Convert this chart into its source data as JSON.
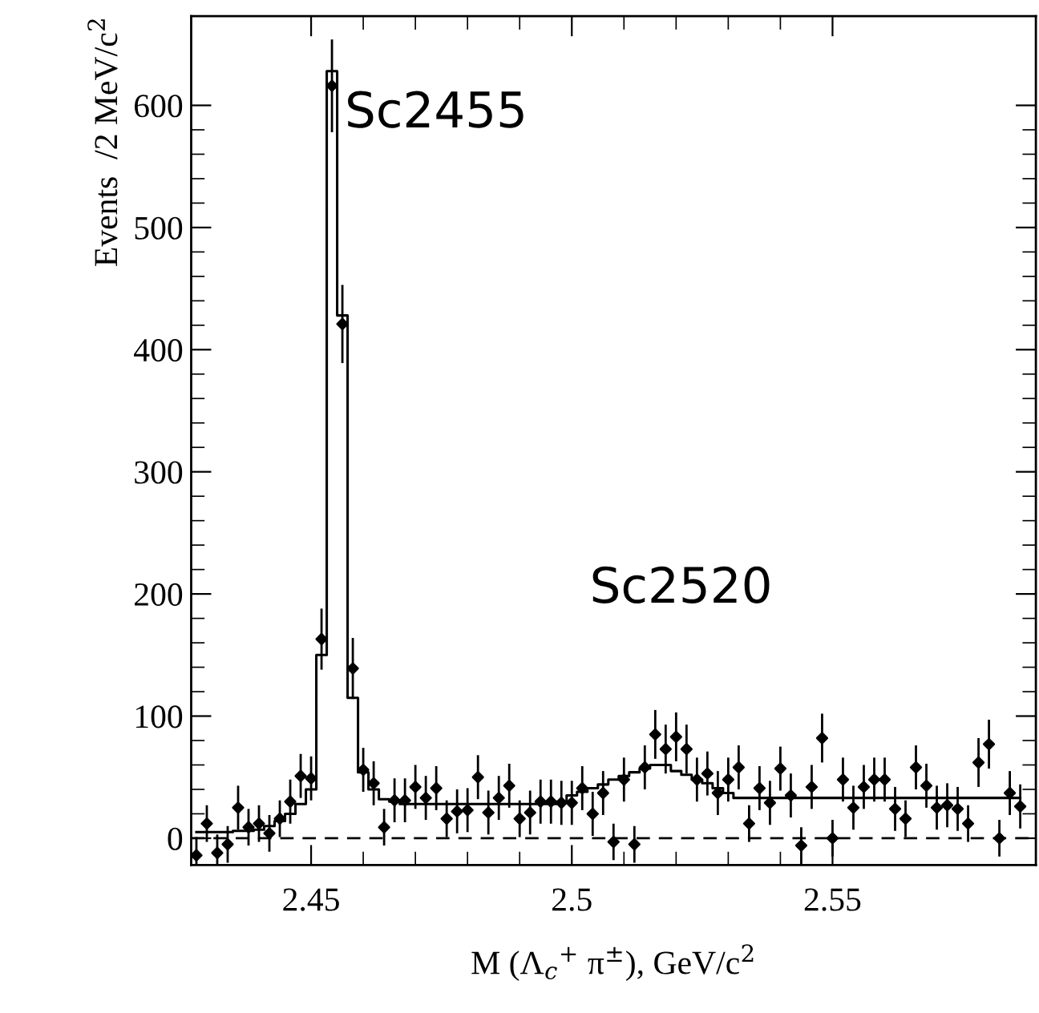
{
  "chart_data": {
    "type": "scatter",
    "xlabel": "M (Λ$_{c}$$^{+}$ π$^{±}$), GeV/c$^{2}$",
    "ylabel": "Events  /2 MeV/c$^{2}$",
    "xlim": [
      2.427,
      2.589
    ],
    "xticks": [
      2.45,
      2.5,
      2.55
    ],
    "ylim": [
      -22,
      673
    ],
    "yticks": [
      0,
      100,
      200,
      300,
      400,
      500,
      600
    ],
    "grid": false,
    "legend": false,
    "ref_lines": [
      {
        "axis": "y",
        "value": 0,
        "color": "#000000",
        "line_style": "dashed"
      }
    ],
    "annotations": [
      "Sc2455",
      "Sc2520"
    ],
    "series": [
      {
        "type": "step",
        "color": "#000000",
        "line_style": "solid",
        "marker": "none",
        "x": [
          2.428,
          2.43,
          2.432,
          2.434,
          2.436,
          2.438,
          2.44,
          2.442,
          2.444,
          2.446,
          2.448,
          2.45,
          2.452,
          2.454,
          2.456,
          2.458,
          2.46,
          2.462,
          2.464,
          2.466,
          2.468,
          2.47,
          2.472,
          2.474,
          2.476,
          2.478,
          2.48,
          2.482,
          2.484,
          2.486,
          2.488,
          2.49,
          2.492,
          2.494,
          2.496,
          2.498,
          2.5,
          2.502,
          2.504,
          2.506,
          2.508,
          2.51,
          2.512,
          2.514,
          2.516,
          2.518,
          2.52,
          2.522,
          2.524,
          2.526,
          2.528,
          2.53,
          2.532,
          2.534,
          2.536,
          2.538,
          2.54,
          2.542,
          2.544,
          2.546,
          2.548,
          2.55,
          2.552,
          2.554,
          2.556,
          2.558,
          2.56,
          2.562,
          2.564,
          2.566,
          2.568,
          2.57,
          2.572,
          2.574,
          2.576,
          2.578,
          2.58,
          2.582,
          2.584,
          2.586
        ],
        "values": [
          5,
          5,
          5,
          5,
          6,
          6,
          7,
          10,
          14,
          20,
          28,
          40,
          150,
          628,
          428,
          115,
          54,
          40,
          32,
          30,
          28,
          28,
          28,
          28,
          28,
          28,
          28,
          28,
          28,
          28,
          28,
          28,
          28,
          28,
          28,
          30,
          35,
          38,
          41,
          44,
          48,
          51,
          54,
          57,
          60,
          60,
          55,
          52,
          48,
          45,
          41,
          37,
          33,
          33,
          33,
          33,
          33,
          33,
          33,
          33,
          33,
          33,
          33,
          33,
          33,
          33,
          33,
          33,
          33,
          33,
          33,
          33,
          33,
          33,
          33,
          33,
          33,
          33,
          33,
          33
        ]
      },
      {
        "type": "scatter",
        "color": "#000000",
        "marker": "diamond",
        "x": [
          2.428,
          2.43,
          2.432,
          2.434,
          2.436,
          2.438,
          2.44,
          2.442,
          2.444,
          2.446,
          2.448,
          2.45,
          2.452,
          2.454,
          2.456,
          2.458,
          2.46,
          2.462,
          2.464,
          2.466,
          2.468,
          2.47,
          2.472,
          2.474,
          2.476,
          2.478,
          2.48,
          2.482,
          2.484,
          2.486,
          2.488,
          2.49,
          2.492,
          2.494,
          2.496,
          2.498,
          2.5,
          2.502,
          2.504,
          2.506,
          2.508,
          2.51,
          2.512,
          2.514,
          2.516,
          2.518,
          2.52,
          2.522,
          2.524,
          2.526,
          2.528,
          2.53,
          2.532,
          2.534,
          2.536,
          2.538,
          2.54,
          2.542,
          2.544,
          2.546,
          2.548,
          2.55,
          2.552,
          2.554,
          2.556,
          2.558,
          2.56,
          2.562,
          2.564,
          2.566,
          2.568,
          2.57,
          2.572,
          2.574,
          2.576,
          2.578,
          2.58,
          2.582,
          2.584,
          2.586
        ],
        "values": [
          -14,
          12,
          -12,
          -5,
          25,
          9,
          12,
          4,
          16,
          30,
          51,
          49,
          163,
          616,
          421,
          139,
          56,
          45,
          9,
          31,
          31,
          42,
          33,
          41,
          16,
          22,
          23,
          50,
          21,
          33,
          43,
          16,
          21,
          30,
          30,
          29,
          29,
          41,
          20,
          37,
          -3,
          48,
          -5,
          58,
          85,
          73,
          83,
          73,
          48,
          53,
          37,
          48,
          58,
          12,
          41,
          29,
          57,
          35,
          -6,
          42,
          82,
          0,
          48,
          25,
          42,
          48,
          48,
          24,
          16,
          58,
          43,
          25,
          27,
          24,
          12,
          62,
          77,
          0,
          37,
          26
        ],
        "errors": [
          15,
          15,
          15,
          15,
          18,
          15,
          15,
          15,
          15,
          18,
          18,
          18,
          25,
          38,
          32,
          25,
          18,
          18,
          15,
          18,
          18,
          18,
          18,
          18,
          15,
          18,
          18,
          18,
          18,
          18,
          18,
          15,
          18,
          18,
          18,
          18,
          18,
          18,
          18,
          18,
          15,
          18,
          15,
          18,
          20,
          20,
          20,
          20,
          18,
          18,
          18,
          18,
          18,
          15,
          18,
          18,
          18,
          18,
          15,
          18,
          20,
          15,
          18,
          18,
          18,
          18,
          18,
          18,
          15,
          18,
          18,
          18,
          18,
          18,
          15,
          20,
          20,
          15,
          18,
          18
        ]
      }
    ]
  }
}
